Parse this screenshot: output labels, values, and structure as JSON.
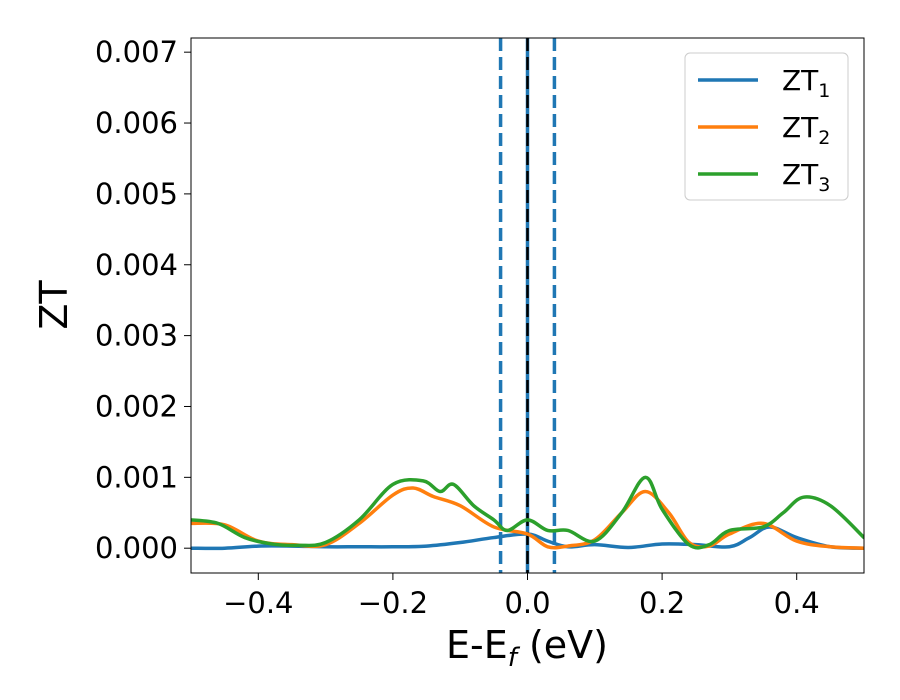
{
  "chart_data": {
    "type": "line",
    "xlabel": "E-E",
    "xlabel_sub": "f",
    "xlabel_unit": " (eV)",
    "ylabel": "ZT",
    "xlim": [
      -0.5,
      0.5
    ],
    "ylim": [
      -0.00035,
      0.0072
    ],
    "xticks": [
      -0.4,
      -0.2,
      0.0,
      0.2,
      0.4
    ],
    "xtick_labels": [
      "−0.4",
      "−0.2",
      "0.0",
      "0.2",
      "0.4"
    ],
    "yticks": [
      0.0,
      0.001,
      0.002,
      0.003,
      0.004,
      0.005,
      0.006,
      0.007
    ],
    "ytick_labels": [
      "0.000",
      "0.001",
      "0.002",
      "0.003",
      "0.004",
      "0.005",
      "0.006",
      "0.007"
    ],
    "grid": false,
    "legend_position": "top-right",
    "vertical_lines": [
      {
        "x": -0.04,
        "style": "dashed",
        "color": "#1f77b4"
      },
      {
        "x": 0.0,
        "style": "solid",
        "color": "#1f77b4"
      },
      {
        "x": 0.0,
        "style": "dashed",
        "color": "#000000"
      },
      {
        "x": 0.04,
        "style": "dashed",
        "color": "#1f77b4"
      }
    ],
    "series": [
      {
        "name": "ZT",
        "name_sub": "1",
        "color": "#1f77b4",
        "x": [
          -0.5,
          -0.45,
          -0.4,
          -0.35,
          -0.3,
          -0.25,
          -0.2,
          -0.15,
          -0.1,
          -0.05,
          0.0,
          0.03,
          0.06,
          0.1,
          0.15,
          0.2,
          0.25,
          0.3,
          0.33,
          0.36,
          0.4,
          0.45,
          0.5
        ],
        "y": [
          0.0,
          0.0,
          3e-05,
          3e-05,
          2e-05,
          2e-05,
          2e-05,
          3e-05,
          8e-05,
          0.00015,
          0.0002,
          0.0001,
          2e-05,
          5e-05,
          1e-05,
          6e-05,
          5e-05,
          2e-05,
          0.00015,
          0.0003,
          0.00015,
          2e-05,
          0.0
        ]
      },
      {
        "name": "ZT",
        "name_sub": "2",
        "color": "#ff7f0e",
        "x": [
          -0.5,
          -0.45,
          -0.4,
          -0.35,
          -0.3,
          -0.25,
          -0.2,
          -0.17,
          -0.14,
          -0.1,
          -0.05,
          0.0,
          0.03,
          0.06,
          0.1,
          0.14,
          0.175,
          0.21,
          0.24,
          0.27,
          0.3,
          0.35,
          0.4,
          0.45,
          0.5
        ],
        "y": [
          0.00035,
          0.00033,
          0.0001,
          5e-05,
          5e-05,
          0.00035,
          0.00075,
          0.00085,
          0.00073,
          0.0006,
          0.0003,
          0.0002,
          2e-05,
          3e-05,
          0.00012,
          0.0005,
          0.0008,
          0.0005,
          8e-05,
          3e-05,
          0.0002,
          0.00035,
          0.0001,
          2e-05,
          0.0
        ]
      },
      {
        "name": "ZT",
        "name_sub": "3",
        "color": "#2ca02c",
        "x": [
          -0.5,
          -0.46,
          -0.42,
          -0.38,
          -0.34,
          -0.3,
          -0.25,
          -0.2,
          -0.155,
          -0.13,
          -0.11,
          -0.08,
          -0.05,
          -0.03,
          0.0,
          0.03,
          0.06,
          0.1,
          0.14,
          0.175,
          0.2,
          0.24,
          0.27,
          0.3,
          0.35,
          0.38,
          0.41,
          0.45,
          0.5
        ],
        "y": [
          0.0004,
          0.00035,
          0.00015,
          6e-05,
          4e-05,
          8e-05,
          0.0004,
          0.0009,
          0.00095,
          0.0008,
          0.0009,
          0.0006,
          0.0004,
          0.00025,
          0.0004,
          0.00025,
          0.00025,
          0.0001,
          0.0005,
          0.001,
          0.00055,
          5e-05,
          5e-05,
          0.00025,
          0.0003,
          0.0005,
          0.00072,
          0.0006,
          0.00015
        ]
      }
    ]
  }
}
